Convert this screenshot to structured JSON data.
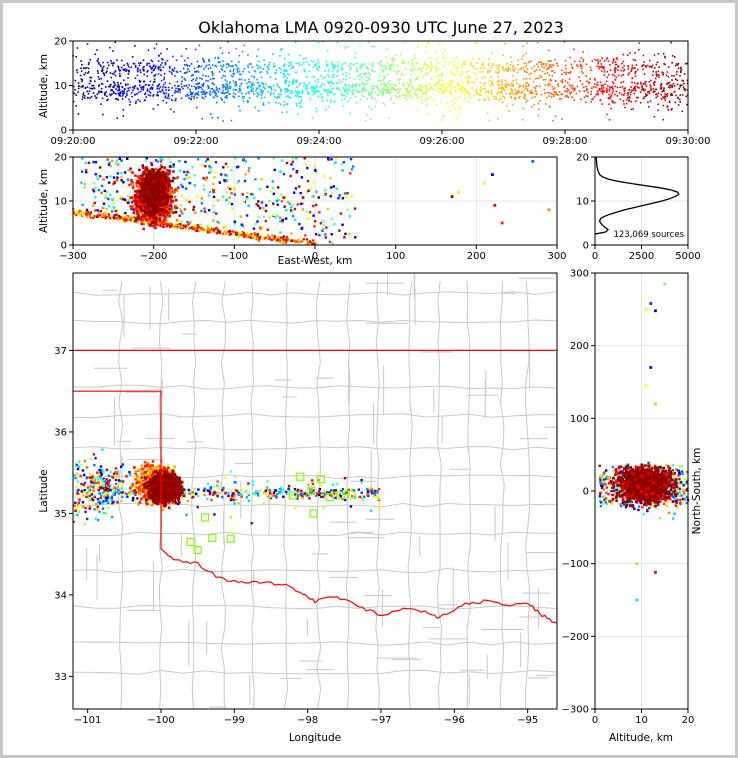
{
  "chart_data": [
    {
      "type": "scatter",
      "panel": "altitude-vs-time",
      "title": "Oklahoma LMA 0920-0930 UTC June 27, 2023",
      "ylabel": "Altitude, km",
      "xlabel": "",
      "x_ticks": [
        "09:20:00",
        "09:22:00",
        "09:24:00",
        "09:26:00",
        "09:28:00",
        "09:30:00"
      ],
      "xlim_minutes": [
        0,
        10
      ],
      "y_ticks": [
        "0",
        "10",
        "20"
      ],
      "ylim": [
        0,
        20
      ],
      "color_by": "time",
      "colormap": [
        "#00007f",
        "#0000ff",
        "#007fff",
        "#00ffff",
        "#7fff7f",
        "#ffff00",
        "#ff7f00",
        "#ff0000",
        "#7f0000"
      ]
    },
    {
      "type": "scatter",
      "panel": "altitude-vs-east-west",
      "ylabel": "Altitude, km",
      "xlabel": "East-West, km",
      "x_ticks": [
        "−300",
        "−200",
        "−100",
        "0",
        "100",
        "200",
        "300"
      ],
      "xlim": [
        -300,
        300
      ],
      "y_ticks": [
        "0",
        "10",
        "20"
      ],
      "ylim": [
        0,
        20
      ],
      "main_cluster": {
        "x_range": [
          -260,
          -140
        ],
        "z_range": [
          2,
          20
        ]
      },
      "east_outliers": [
        [
          170,
          11
        ],
        [
          178,
          12
        ],
        [
          210,
          14
        ],
        [
          220,
          16
        ],
        [
          223,
          9
        ],
        [
          232,
          5
        ],
        [
          270,
          19
        ],
        [
          290,
          8
        ]
      ]
    },
    {
      "type": "line",
      "panel": "altitude-histogram",
      "x_ticks": [
        "0",
        "2500",
        "5000"
      ],
      "xlim": [
        0,
        5000
      ],
      "y_ticks": [
        "0",
        "10",
        "20"
      ],
      "ylim": [
        0,
        20
      ],
      "annotation": "123,069 sources",
      "profile": [
        [
          0,
          2.5
        ],
        [
          400,
          2.8
        ],
        [
          600,
          3.0
        ],
        [
          700,
          3.5
        ],
        [
          550,
          4.0
        ],
        [
          400,
          4.5
        ],
        [
          300,
          5.0
        ],
        [
          250,
          5.5
        ],
        [
          300,
          6.0
        ],
        [
          500,
          6.5
        ],
        [
          800,
          7.0
        ],
        [
          1200,
          7.5
        ],
        [
          1600,
          8.0
        ],
        [
          2100,
          8.5
        ],
        [
          2600,
          9.0
        ],
        [
          3100,
          9.5
        ],
        [
          3600,
          10.0
        ],
        [
          4000,
          10.5
        ],
        [
          4300,
          11.0
        ],
        [
          4500,
          11.5
        ],
        [
          4450,
          12.0
        ],
        [
          4100,
          12.5
        ],
        [
          3500,
          13.0
        ],
        [
          2700,
          13.5
        ],
        [
          1900,
          14.0
        ],
        [
          1200,
          14.5
        ],
        [
          700,
          15.0
        ],
        [
          400,
          15.5
        ],
        [
          250,
          16.0
        ],
        [
          150,
          17.0
        ],
        [
          100,
          18.0
        ],
        [
          80,
          19.0
        ],
        [
          60,
          20.0
        ]
      ]
    },
    {
      "type": "scatter",
      "panel": "plan-view-map",
      "xlabel": "Longitude",
      "ylabel": "Latitude",
      "x_ticks": [
        "−101",
        "−100",
        "−99",
        "−98",
        "−97",
        "−96",
        "−95"
      ],
      "xlim": [
        -101.2,
        -94.6
      ],
      "y_ticks": [
        "33",
        "34",
        "35",
        "36",
        "37"
      ],
      "ylim": [
        32.6,
        37.95
      ],
      "state_border_color": "#ff0000",
      "county_line_color": "#c8c8c8",
      "main_cluster_center": [
        -100.0,
        35.3
      ],
      "stations": [
        [
          -98.1,
          35.45
        ],
        [
          -97.95,
          35.28
        ],
        [
          -97.82,
          35.42
        ],
        [
          -97.7,
          35.2
        ],
        [
          -97.55,
          35.22
        ],
        [
          -97.4,
          35.23
        ],
        [
          -97.92,
          35.0
        ],
        [
          -98.2,
          35.22
        ],
        [
          -99.4,
          34.95
        ],
        [
          -99.3,
          34.7
        ],
        [
          -99.05,
          34.69
        ],
        [
          -99.5,
          34.55
        ],
        [
          -99.6,
          34.65
        ]
      ]
    },
    {
      "type": "scatter",
      "panel": "north-south-vs-altitude",
      "xlabel": "Altitude, km",
      "ylabel": "North-South, km",
      "x_ticks": [
        "0",
        "10",
        "20"
      ],
      "xlim": [
        0,
        20
      ],
      "y_ticks": [
        "−300",
        "−200",
        "−100",
        "0",
        "100",
        "200",
        "300"
      ],
      "ylim": [
        -300,
        300
      ],
      "main_cluster": {
        "z_range": [
          1,
          20
        ],
        "ns_range": [
          -70,
          80
        ]
      }
    }
  ]
}
